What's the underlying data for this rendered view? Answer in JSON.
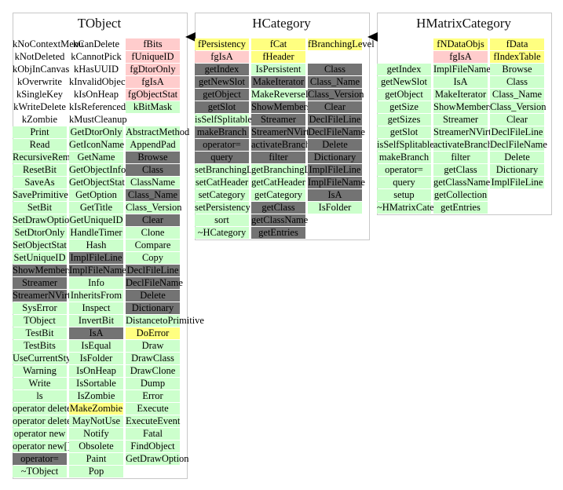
{
  "colors": {
    "method_public": "#ccffcc",
    "method_protected": "#737373",
    "data_private": "#ffcccc",
    "data_protected": "#ffff80"
  },
  "classes": [
    {
      "name": "TObject",
      "columns": [
        [
          "kNoContextMenu",
          "kNotDeleted",
          "kObjInCanvas",
          "kOverwrite",
          "kSingleKey",
          "kWriteDelete",
          "kZombie",
          {
            "t": "Print",
            "c": "g"
          },
          {
            "t": "Read",
            "c": "g"
          },
          {
            "t": "RecursiveRemove",
            "c": "g"
          },
          {
            "t": "ResetBit",
            "c": "g"
          },
          {
            "t": "SaveAs",
            "c": "g"
          },
          {
            "t": "SavePrimitive",
            "c": "g"
          },
          {
            "t": "SetBit",
            "c": "g"
          },
          {
            "t": "SetDrawOption",
            "c": "g"
          },
          {
            "t": "SetDtorOnly",
            "c": "g"
          },
          {
            "t": "SetObjectStat",
            "c": "g"
          },
          {
            "t": "SetUniqueID",
            "c": "g"
          },
          {
            "t": "ShowMembers",
            "c": "d"
          },
          {
            "t": "Streamer",
            "c": "d"
          },
          {
            "t": "StreamerNVirtual",
            "c": "d"
          },
          {
            "t": "SysError",
            "c": "g"
          },
          {
            "t": "TObject",
            "c": "g"
          },
          {
            "t": "TestBit",
            "c": "g"
          },
          {
            "t": "TestBits",
            "c": "g"
          },
          {
            "t": "UseCurrentStyle",
            "c": "g"
          },
          {
            "t": "Warning",
            "c": "g"
          },
          {
            "t": "Write",
            "c": "g"
          },
          {
            "t": "ls",
            "c": "g"
          },
          {
            "t": "operator delete",
            "c": "g"
          },
          {
            "t": "operator delete[]",
            "c": "g"
          },
          {
            "t": "operator new",
            "c": "g"
          },
          {
            "t": "operator new[]",
            "c": "g"
          },
          {
            "t": "operator=",
            "c": "d"
          },
          {
            "t": "~TObject",
            "c": "g"
          }
        ],
        [
          "kCanDelete",
          "kCannotPick",
          "kHasUUID",
          "kInvalidObject",
          "kIsOnHeap",
          "kIsReferenced",
          "kMustCleanup",
          {
            "t": "GetDtorOnly",
            "c": "g"
          },
          {
            "t": "GetIconName",
            "c": "g"
          },
          {
            "t": "GetName",
            "c": "g"
          },
          {
            "t": "GetObjectInfo",
            "c": "g"
          },
          {
            "t": "GetObjectStat",
            "c": "g"
          },
          {
            "t": "GetOption",
            "c": "g"
          },
          {
            "t": "GetTitle",
            "c": "g"
          },
          {
            "t": "GetUniqueID",
            "c": "g"
          },
          {
            "t": "HandleTimer",
            "c": "g"
          },
          {
            "t": "Hash",
            "c": "g"
          },
          {
            "t": "ImplFileLine",
            "c": "d"
          },
          {
            "t": "ImplFileName",
            "c": "d"
          },
          {
            "t": "Info",
            "c": "g"
          },
          {
            "t": "InheritsFrom",
            "c": "g"
          },
          {
            "t": "Inspect",
            "c": "g"
          },
          {
            "t": "InvertBit",
            "c": "g"
          },
          {
            "t": "IsA",
            "c": "d"
          },
          {
            "t": "IsEqual",
            "c": "g"
          },
          {
            "t": "IsFolder",
            "c": "g"
          },
          {
            "t": "IsOnHeap",
            "c": "g"
          },
          {
            "t": "IsSortable",
            "c": "g"
          },
          {
            "t": "IsZombie",
            "c": "g"
          },
          {
            "t": "MakeZombie",
            "c": "y"
          },
          {
            "t": "MayNotUse",
            "c": "g"
          },
          {
            "t": "Notify",
            "c": "g"
          },
          {
            "t": "Obsolete",
            "c": "g"
          },
          {
            "t": "Paint",
            "c": "g"
          },
          {
            "t": "Pop",
            "c": "g"
          }
        ],
        [
          {
            "t": "fBits",
            "c": "p"
          },
          {
            "t": "fUniqueID",
            "c": "p"
          },
          {
            "t": "fgDtorOnly",
            "c": "p"
          },
          {
            "t": "fgIsA",
            "c": "p"
          },
          {
            "t": "fgObjectStat",
            "c": "p"
          },
          {
            "t": "kBitMask",
            "c": "g"
          },
          {
            "t": "",
            "c": "w"
          },
          {
            "t": "AbstractMethod",
            "c": "g"
          },
          {
            "t": "AppendPad",
            "c": "g"
          },
          {
            "t": "Browse",
            "c": "d"
          },
          {
            "t": "Class",
            "c": "d"
          },
          {
            "t": "ClassName",
            "c": "g"
          },
          {
            "t": "Class_Name",
            "c": "d"
          },
          {
            "t": "Class_Version",
            "c": "g"
          },
          {
            "t": "Clear",
            "c": "d"
          },
          {
            "t": "Clone",
            "c": "g"
          },
          {
            "t": "Compare",
            "c": "g"
          },
          {
            "t": "Copy",
            "c": "g"
          },
          {
            "t": "DeclFileLine",
            "c": "d"
          },
          {
            "t": "DeclFileName",
            "c": "d"
          },
          {
            "t": "Delete",
            "c": "d"
          },
          {
            "t": "Dictionary",
            "c": "d"
          },
          {
            "t": "DistancetoPrimitive",
            "c": "g"
          },
          {
            "t": "DoError",
            "c": "y"
          },
          {
            "t": "Draw",
            "c": "g"
          },
          {
            "t": "DrawClass",
            "c": "g"
          },
          {
            "t": "DrawClone",
            "c": "g"
          },
          {
            "t": "Dump",
            "c": "g"
          },
          {
            "t": "Error",
            "c": "g"
          },
          {
            "t": "Execute",
            "c": "g"
          },
          {
            "t": "ExecuteEvent",
            "c": "g"
          },
          {
            "t": "Fatal",
            "c": "g"
          },
          {
            "t": "FindObject",
            "c": "g"
          },
          {
            "t": "GetDrawOption",
            "c": "g"
          }
        ]
      ]
    },
    {
      "name": "HCategory",
      "columns": [
        [
          {
            "t": "fPersistency",
            "c": "y"
          },
          {
            "t": "fgIsA",
            "c": "p"
          },
          {
            "t": "getIndex",
            "c": "d"
          },
          {
            "t": "getNewSlot",
            "c": "d"
          },
          {
            "t": "getObject",
            "c": "d"
          },
          {
            "t": "getSlot",
            "c": "d"
          },
          {
            "t": "isSelfSplitable",
            "c": "g"
          },
          {
            "t": "makeBranch",
            "c": "d"
          },
          {
            "t": "operator=",
            "c": "d"
          },
          {
            "t": "query",
            "c": "d"
          },
          {
            "t": "setBranchingLevel",
            "c": "g"
          },
          {
            "t": "setCatHeader",
            "c": "g"
          },
          {
            "t": "setCategory",
            "c": "g"
          },
          {
            "t": "setPersistency",
            "c": "g"
          },
          {
            "t": "sort",
            "c": "g"
          },
          {
            "t": "~HCategory",
            "c": "g"
          }
        ],
        [
          {
            "t": "fCat",
            "c": "y"
          },
          {
            "t": "fHeader",
            "c": "y"
          },
          {
            "t": "IsPersistent",
            "c": "g"
          },
          {
            "t": "MakeIterator",
            "c": "d"
          },
          {
            "t": "MakeReverseIterator",
            "c": "g"
          },
          {
            "t": "ShowMembers",
            "c": "d"
          },
          {
            "t": "Streamer",
            "c": "d"
          },
          {
            "t": "StreamerNVirtual",
            "c": "d"
          },
          {
            "t": "activateBranch",
            "c": "d"
          },
          {
            "t": "filter",
            "c": "d"
          },
          {
            "t": "getBranchingLevel",
            "c": "g"
          },
          {
            "t": "getCatHeader",
            "c": "g"
          },
          {
            "t": "getCategory",
            "c": "g"
          },
          {
            "t": "getClass",
            "c": "d"
          },
          {
            "t": "getClassName",
            "c": "d"
          },
          {
            "t": "getEntries",
            "c": "d"
          }
        ],
        [
          {
            "t": "fBranchingLevel",
            "c": "y"
          },
          {
            "t": "",
            "c": "w"
          },
          {
            "t": "Class",
            "c": "d"
          },
          {
            "t": "Class_Name",
            "c": "d"
          },
          {
            "t": "Class_Version",
            "c": "d"
          },
          {
            "t": "Clear",
            "c": "d"
          },
          {
            "t": "DeclFileLine",
            "c": "d"
          },
          {
            "t": "DeclFileName",
            "c": "d"
          },
          {
            "t": "Delete",
            "c": "d"
          },
          {
            "t": "Dictionary",
            "c": "d"
          },
          {
            "t": "ImplFileLine",
            "c": "d"
          },
          {
            "t": "ImplFileName",
            "c": "d"
          },
          {
            "t": "IsA",
            "c": "d"
          },
          {
            "t": "IsFolder",
            "c": "g"
          }
        ]
      ]
    },
    {
      "name": "HMatrixCategory",
      "columns": [
        [
          {
            "t": "",
            "c": "w"
          },
          {
            "t": "",
            "c": "w"
          },
          {
            "t": "getIndex",
            "c": "g"
          },
          {
            "t": "getNewSlot",
            "c": "g"
          },
          {
            "t": "getObject",
            "c": "g"
          },
          {
            "t": "getSize",
            "c": "g"
          },
          {
            "t": "getSizes",
            "c": "g"
          },
          {
            "t": "getSlot",
            "c": "g"
          },
          {
            "t": "isSelfSplitable",
            "c": "g"
          },
          {
            "t": "makeBranch",
            "c": "g"
          },
          {
            "t": "operator=",
            "c": "g"
          },
          {
            "t": "query",
            "c": "g"
          },
          {
            "t": "setup",
            "c": "g"
          },
          {
            "t": "~HMatrixCategory",
            "c": "g"
          }
        ],
        [
          {
            "t": "fNDataObjs",
            "c": "y"
          },
          {
            "t": "fgIsA",
            "c": "p"
          },
          {
            "t": "ImplFileName",
            "c": "g"
          },
          {
            "t": "IsA",
            "c": "g"
          },
          {
            "t": "MakeIterator",
            "c": "g"
          },
          {
            "t": "ShowMembers",
            "c": "g"
          },
          {
            "t": "Streamer",
            "c": "g"
          },
          {
            "t": "StreamerNVirtual",
            "c": "g"
          },
          {
            "t": "activateBranch",
            "c": "g"
          },
          {
            "t": "filter",
            "c": "g"
          },
          {
            "t": "getClass",
            "c": "g"
          },
          {
            "t": "getClassName",
            "c": "g"
          },
          {
            "t": "getCollection",
            "c": "g"
          },
          {
            "t": "getEntries",
            "c": "g"
          }
        ],
        [
          {
            "t": "fData",
            "c": "y"
          },
          {
            "t": "fIndexTable",
            "c": "y"
          },
          {
            "t": "Browse",
            "c": "g"
          },
          {
            "t": "Class",
            "c": "g"
          },
          {
            "t": "Class_Name",
            "c": "g"
          },
          {
            "t": "Class_Version",
            "c": "g"
          },
          {
            "t": "Clear",
            "c": "g"
          },
          {
            "t": "DeclFileLine",
            "c": "g"
          },
          {
            "t": "DeclFileName",
            "c": "g"
          },
          {
            "t": "Delete",
            "c": "g"
          },
          {
            "t": "Dictionary",
            "c": "g"
          },
          {
            "t": "ImplFileLine",
            "c": "g"
          }
        ]
      ]
    }
  ]
}
